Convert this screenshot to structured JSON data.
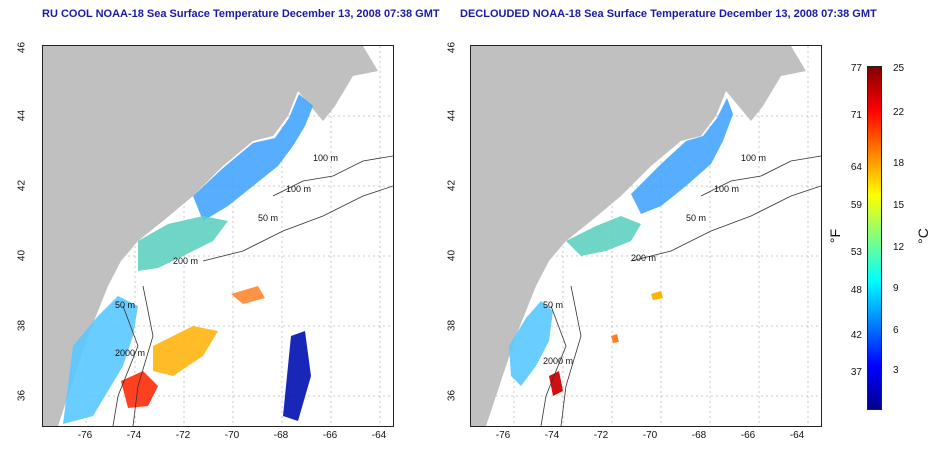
{
  "maps": [
    {
      "title": "RU COOL NOAA-18 Sea Surface Temperature December 13, 2008 07:38 GMT"
    },
    {
      "title": "DECLOUDED NOAA-18 Sea Surface Temperature December 13, 2008 07:38 GMT"
    }
  ],
  "axes": {
    "lon_labels": [
      "-76",
      "-74",
      "-72",
      "-70",
      "-68",
      "-66",
      "-64"
    ],
    "lat_labels": [
      "46",
      "44",
      "42",
      "40",
      "38",
      "36"
    ]
  },
  "contour_labels": {
    "left": [
      "100 m",
      "100 m",
      "50 m",
      "200 m",
      "50 m",
      "2000 m"
    ],
    "right": [
      "100 m",
      "100 m",
      "50 m",
      "200 m",
      "50 m",
      "2000 m"
    ]
  },
  "colorbar": {
    "f_unit": "°F",
    "c_unit": "°C",
    "f_ticks": [
      "77",
      "71",
      "64",
      "59",
      "53",
      "48",
      "42",
      "37"
    ],
    "c_ticks": [
      "25",
      "22",
      "18",
      "15",
      "12",
      "9",
      "6",
      "3"
    ],
    "colors": [
      "#00008f",
      "#0000ff",
      "#0080ff",
      "#00ffff",
      "#80ff80",
      "#ffff00",
      "#ff8000",
      "#ff0000",
      "#800000"
    ]
  },
  "colors": {
    "land": "#c0c0c0",
    "ocean_nodata": "#ffffff",
    "title": "#1a1aa6"
  }
}
